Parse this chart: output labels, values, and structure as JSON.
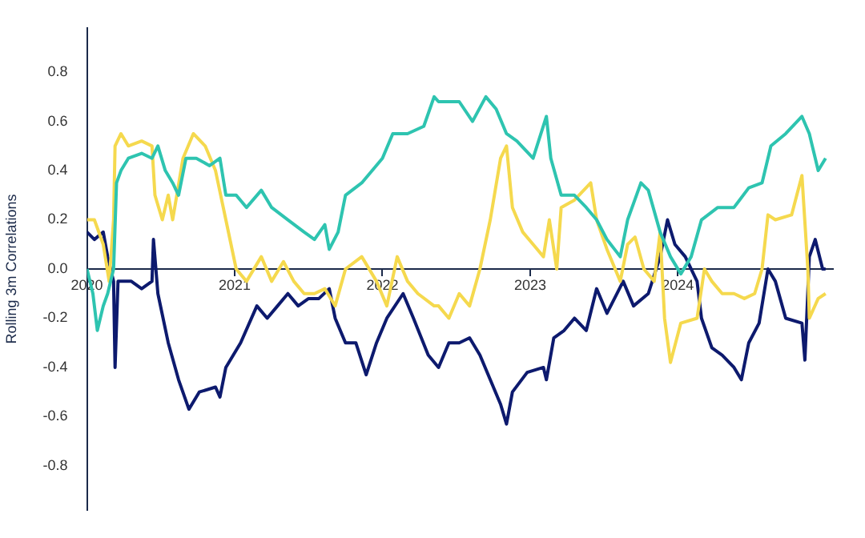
{
  "chart_data": {
    "type": "line",
    "ylabel": "Rolling 3m Correlations",
    "xlim": [
      2020,
      2025.05
    ],
    "xticks": [
      2020,
      2021,
      2022,
      2023,
      2024
    ],
    "ylim": [
      -0.98,
      0.98
    ],
    "yticks": [
      -0.8,
      -0.6,
      -0.4,
      -0.2,
      {
        "value": 0,
        "label": "0.0"
      },
      0.2,
      0.4,
      0.6,
      0.8
    ],
    "grid": false,
    "legend": false,
    "marker": "none",
    "line_style": "solid",
    "series": [
      {
        "color": "#2ec4b0",
        "x": [
          2020.0,
          2020.04,
          2020.07,
          2020.11,
          2020.14,
          2020.18,
          2020.2,
          2020.23,
          2020.28,
          2020.37,
          2020.44,
          2020.48,
          2020.53,
          2020.58,
          2020.62,
          2020.67,
          2020.74,
          2020.83,
          2020.9,
          2020.94,
          2021.01,
          2021.08,
          2021.18,
          2021.25,
          2021.36,
          2021.47,
          2021.54,
          2021.61,
          2021.64,
          2021.7,
          2021.75,
          2021.86,
          2022.0,
          2022.07,
          2022.17,
          2022.28,
          2022.35,
          2022.38,
          2022.52,
          2022.61,
          2022.7,
          2022.77,
          2022.84,
          2022.91,
          2023.02,
          2023.11,
          2023.14,
          2023.21,
          2023.3,
          2023.38,
          2023.45,
          2023.52,
          2023.61,
          2023.66,
          2023.75,
          2023.8,
          2023.88,
          2023.95,
          2024.02,
          2024.09,
          2024.16,
          2024.27,
          2024.38,
          2024.48,
          2024.57,
          2024.63,
          2024.73,
          2024.84,
          2024.89,
          2024.95,
          2025.0
        ],
        "values": [
          0.0,
          -0.1,
          -0.25,
          -0.15,
          -0.1,
          0.0,
          0.35,
          0.4,
          0.45,
          0.47,
          0.45,
          0.5,
          0.4,
          0.35,
          0.3,
          0.45,
          0.45,
          0.42,
          0.45,
          0.3,
          0.3,
          0.25,
          0.32,
          0.25,
          0.2,
          0.15,
          0.12,
          0.18,
          0.08,
          0.15,
          0.3,
          0.35,
          0.45,
          0.55,
          0.55,
          0.58,
          0.7,
          0.68,
          0.68,
          0.6,
          0.7,
          0.65,
          0.55,
          0.52,
          0.45,
          0.62,
          0.45,
          0.3,
          0.3,
          0.25,
          0.2,
          0.12,
          0.05,
          0.2,
          0.35,
          0.32,
          0.15,
          0.05,
          -0.02,
          0.05,
          0.2,
          0.25,
          0.25,
          0.33,
          0.35,
          0.5,
          0.55,
          0.62,
          0.55,
          0.4,
          0.45
        ]
      },
      {
        "color": "#f5d94e",
        "x": [
          2020.0,
          2020.05,
          2020.11,
          2020.15,
          2020.18,
          2020.19,
          2020.23,
          2020.28,
          2020.37,
          2020.44,
          2020.46,
          2020.51,
          2020.55,
          2020.58,
          2020.65,
          2020.72,
          2020.8,
          2020.87,
          2020.94,
          2021.01,
          2021.08,
          2021.18,
          2021.25,
          2021.33,
          2021.4,
          2021.47,
          2021.54,
          2021.61,
          2021.68,
          2021.75,
          2021.86,
          2021.96,
          2022.03,
          2022.1,
          2022.17,
          2022.24,
          2022.35,
          2022.38,
          2022.45,
          2022.52,
          2022.59,
          2022.66,
          2022.73,
          2022.8,
          2022.84,
          2022.88,
          2022.95,
          2023.02,
          2023.09,
          2023.13,
          2023.18,
          2023.21,
          2023.3,
          2023.41,
          2023.45,
          2023.52,
          2023.61,
          2023.66,
          2023.71,
          2023.77,
          2023.84,
          2023.88,
          2023.91,
          2023.95,
          2024.02,
          2024.13,
          2024.18,
          2024.23,
          2024.3,
          2024.38,
          2024.45,
          2024.52,
          2024.57,
          2024.61,
          2024.66,
          2024.77,
          2024.84,
          2024.88,
          2024.89,
          2024.95,
          2025.0
        ],
        "values": [
          0.2,
          0.2,
          0.1,
          -0.05,
          0.2,
          0.5,
          0.55,
          0.5,
          0.52,
          0.5,
          0.3,
          0.2,
          0.3,
          0.2,
          0.45,
          0.55,
          0.5,
          0.4,
          0.2,
          0.0,
          -0.05,
          0.05,
          -0.05,
          0.03,
          -0.05,
          -0.1,
          -0.1,
          -0.08,
          -0.15,
          0.0,
          0.05,
          -0.05,
          -0.15,
          0.05,
          -0.05,
          -0.1,
          -0.15,
          -0.15,
          -0.2,
          -0.1,
          -0.15,
          0.0,
          0.2,
          0.45,
          0.5,
          0.25,
          0.15,
          0.1,
          0.05,
          0.2,
          0.0,
          0.25,
          0.28,
          0.35,
          0.2,
          0.08,
          -0.05,
          0.1,
          0.13,
          0.0,
          -0.05,
          0.15,
          -0.2,
          -0.38,
          -0.22,
          -0.2,
          0.0,
          -0.05,
          -0.1,
          -0.1,
          -0.12,
          -0.1,
          0.0,
          0.22,
          0.2,
          0.22,
          0.38,
          0.0,
          -0.2,
          -0.12,
          -0.1
        ]
      },
      {
        "color": "#0d1a6e",
        "x": [
          2020.0,
          2020.05,
          2020.11,
          2020.14,
          2020.18,
          2020.19,
          2020.21,
          2020.3,
          2020.37,
          2020.44,
          2020.45,
          2020.48,
          2020.55,
          2020.62,
          2020.69,
          2020.76,
          2020.87,
          2020.9,
          2020.94,
          2021.04,
          2021.15,
          2021.22,
          2021.29,
          2021.36,
          2021.43,
          2021.5,
          2021.57,
          2021.64,
          2021.68,
          2021.75,
          2021.82,
          2021.89,
          2021.96,
          2022.03,
          2022.14,
          2022.21,
          2022.31,
          2022.38,
          2022.45,
          2022.52,
          2022.59,
          2022.66,
          2022.73,
          2022.8,
          2022.84,
          2022.88,
          2022.98,
          2023.09,
          2023.11,
          2023.16,
          2023.23,
          2023.3,
          2023.38,
          2023.45,
          2023.52,
          2023.63,
          2023.7,
          2023.8,
          2023.88,
          2023.93,
          2023.98,
          2024.05,
          2024.13,
          2024.16,
          2024.23,
          2024.3,
          2024.38,
          2024.43,
          2024.48,
          2024.55,
          2024.61,
          2024.66,
          2024.73,
          2024.84,
          2024.86,
          2024.89,
          2024.93,
          2024.98,
          2025.0
        ],
        "values": [
          0.15,
          0.12,
          0.15,
          0.05,
          -0.05,
          -0.4,
          -0.05,
          -0.05,
          -0.08,
          -0.05,
          0.12,
          -0.1,
          -0.3,
          -0.45,
          -0.57,
          -0.5,
          -0.48,
          -0.52,
          -0.4,
          -0.3,
          -0.15,
          -0.2,
          -0.15,
          -0.1,
          -0.15,
          -0.12,
          -0.12,
          -0.08,
          -0.2,
          -0.3,
          -0.3,
          -0.43,
          -0.3,
          -0.2,
          -0.1,
          -0.2,
          -0.35,
          -0.4,
          -0.3,
          -0.3,
          -0.28,
          -0.35,
          -0.45,
          -0.55,
          -0.63,
          -0.5,
          -0.42,
          -0.4,
          -0.45,
          -0.28,
          -0.25,
          -0.2,
          -0.25,
          -0.08,
          -0.18,
          -0.05,
          -0.15,
          -0.1,
          0.05,
          0.2,
          0.1,
          0.05,
          -0.05,
          -0.2,
          -0.32,
          -0.35,
          -0.4,
          -0.45,
          -0.3,
          -0.22,
          0.0,
          -0.05,
          -0.2,
          -0.22,
          -0.37,
          0.05,
          0.12,
          0.0,
          0.0
        ]
      }
    ]
  }
}
